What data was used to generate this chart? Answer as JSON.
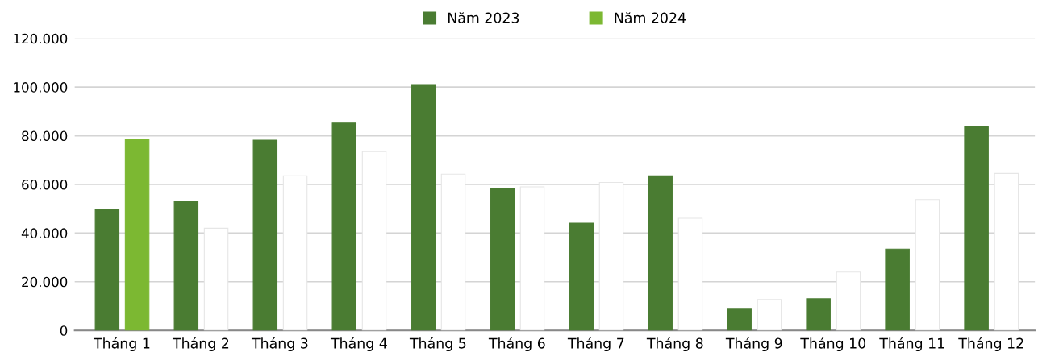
{
  "chart_data": {
    "type": "bar",
    "categories": [
      "Tháng 1",
      "Tháng 2",
      "Tháng 3",
      "Tháng 4",
      "Tháng 5",
      "Tháng 6",
      "Tháng 7",
      "Tháng 8",
      "Tháng 9",
      "Tháng 10",
      "Tháng 11",
      "Tháng 12"
    ],
    "series": [
      {
        "name": "Năm 2023",
        "color": "#4a7c32",
        "values": [
          49500,
          53200,
          78200,
          85200,
          101000,
          58500,
          44100,
          63500,
          8700,
          13000,
          33400,
          83600
        ]
      },
      {
        "name": "Năm 2024",
        "color": "#7cb832",
        "colors": [
          "#7cb832",
          "#ffffff",
          "#ffffff",
          "#ffffff",
          "#ffffff",
          "#ffffff",
          "#ffffff",
          "#ffffff",
          "#ffffff",
          "#ffffff",
          "#ffffff",
          "#ffffff"
        ],
        "values": [
          78600,
          42000,
          63500,
          73500,
          64200,
          59000,
          60800,
          46100,
          12700,
          24000,
          53800,
          64500
        ]
      }
    ],
    "ylim": [
      0,
      120000
    ],
    "yticks": [
      0,
      {
        "value": 20000,
        "label": "20.000"
      },
      {
        "value": 40000,
        "label": "40.000"
      },
      {
        "value": 60000,
        "label": "60.000"
      },
      {
        "value": 80000,
        "label": "80.000"
      },
      {
        "value": 100000,
        "label": "100.000"
      },
      {
        "value": 120000,
        "label": "120.000"
      }
    ],
    "grid": "y",
    "legend": "top"
  }
}
